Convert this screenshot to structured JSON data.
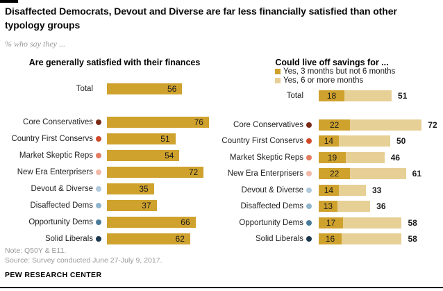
{
  "header": {
    "title": "Disaffected Democrats, Devout and Diverse are far less financially satisfied than other typology groups",
    "subtitle": "% who say they ..."
  },
  "chart_data": [
    {
      "type": "bar",
      "orientation": "horizontal",
      "title": "Are generally satisfied with their finances",
      "categories": [
        "Total",
        "Core Conservatives",
        "Country First Conservs",
        "Market Skeptic Reps",
        "New Era Enterprisers",
        "Devout & Diverse",
        "Disaffected Dems",
        "Opportunity Dems",
        "Solid Liberals"
      ],
      "values": [
        56,
        76,
        51,
        54,
        72,
        35,
        37,
        66,
        62
      ],
      "unit": "%",
      "xlim": [
        0,
        80
      ],
      "grid": false,
      "value_labels": "inside-right"
    },
    {
      "type": "bar",
      "orientation": "horizontal",
      "stacked": true,
      "title": "Could live off savings for ...",
      "legend_position": "top",
      "categories": [
        "Total",
        "Core Conservatives",
        "Country First Conservs",
        "Market Skeptic Reps",
        "New Era Enterprisers",
        "Devout & Diverse",
        "Disaffected Dems",
        "Opportunity Dems",
        "Solid Liberals"
      ],
      "series": [
        {
          "name": "Yes, 3 months but not 6 months",
          "values": [
            18,
            22,
            14,
            19,
            22,
            14,
            13,
            17,
            16
          ],
          "color": "#CFA22E"
        },
        {
          "name": "Yes, 6 or more months",
          "values": [
            33,
            50,
            36,
            27,
            39,
            19,
            23,
            41,
            42
          ],
          "color": "#E7D096"
        }
      ],
      "totals": [
        51,
        72,
        50,
        46,
        61,
        33,
        36,
        58,
        58
      ],
      "unit": "%",
      "xlim": [
        0,
        75
      ],
      "grid": false
    }
  ],
  "colors": {
    "bar_gold": "#CFA22E",
    "bar_tan": "#E7D096",
    "dots": [
      null,
      "#7A2B18",
      "#D04A2B",
      "#E37C60",
      "#F2B9A8",
      "#B0C9DB",
      "#8FB4CC",
      "#4C7C9B",
      "#1E3A4F"
    ]
  },
  "footer": {
    "note": "Note: Q50Y & E11.",
    "source": "Source: Survey conducted June 27-July 9, 2017.",
    "brand": "PEW RESEARCH CENTER"
  }
}
